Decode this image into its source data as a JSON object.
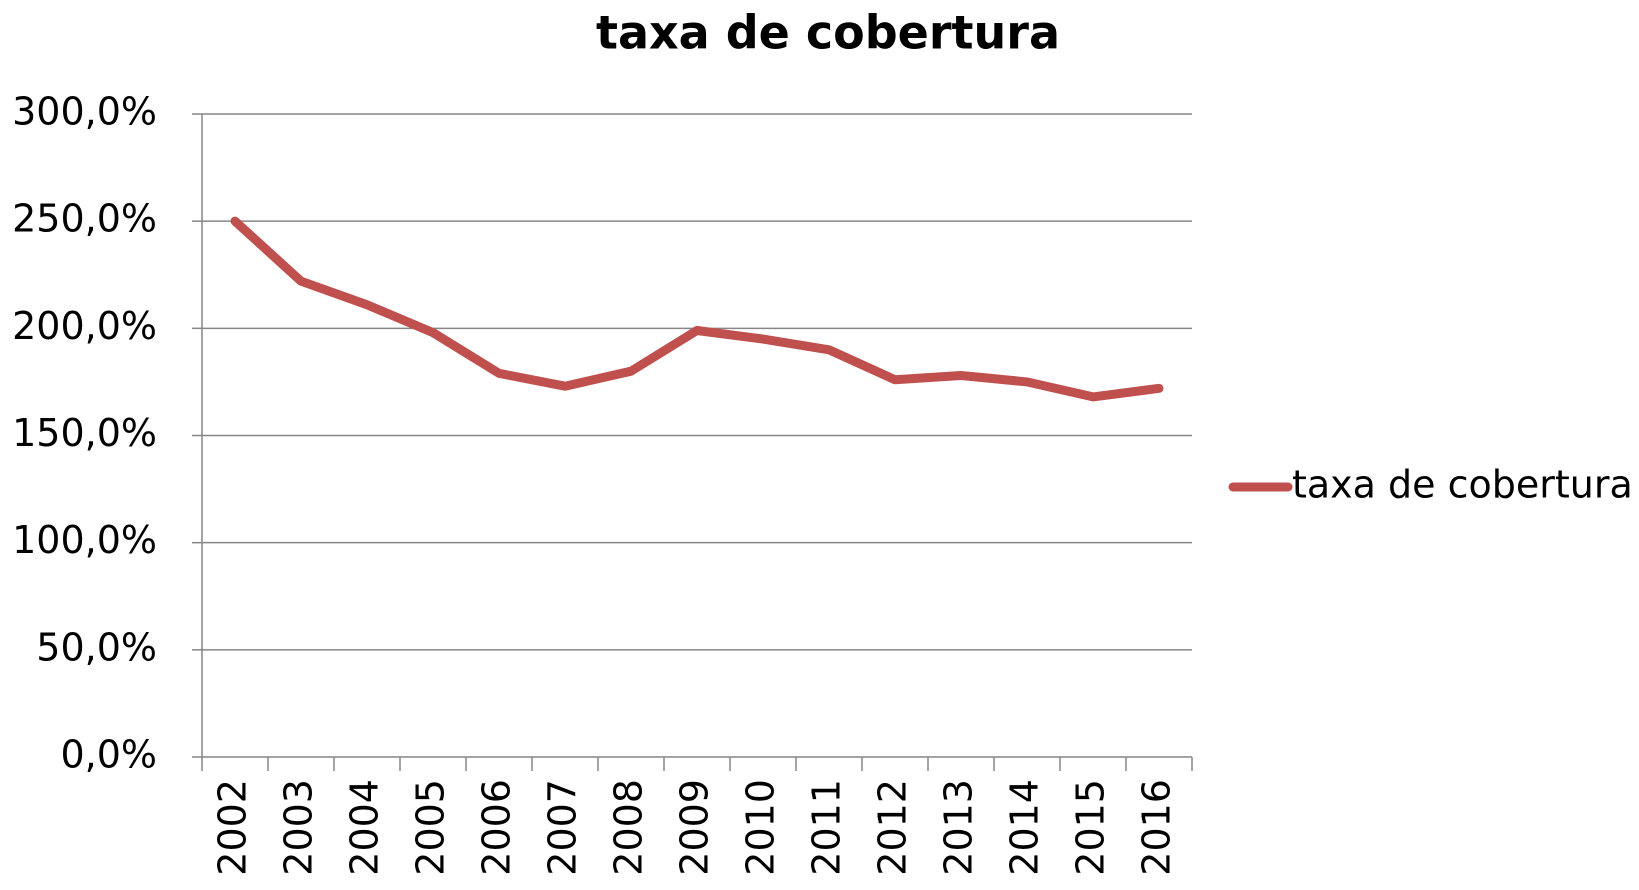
{
  "chart_data": {
    "type": "line",
    "title": "taxa de cobertura",
    "categories": [
      "2002",
      "2003",
      "2004",
      "2005",
      "2006",
      "2007",
      "2008",
      "2009",
      "2010",
      "2011",
      "2012",
      "2013",
      "2014",
      "2015",
      "2016"
    ],
    "series": [
      {
        "name": "taxa de cobertura",
        "color": "#c0504d",
        "values": [
          250,
          222,
          211,
          198,
          179,
          173,
          180,
          199,
          195,
          190,
          176,
          178,
          175,
          168,
          172
        ]
      }
    ],
    "ylim": [
      0,
      300
    ],
    "yticks": [
      {
        "value": 0,
        "label": "0,0%"
      },
      {
        "value": 50,
        "label": "50,0%"
      },
      {
        "value": 100,
        "label": "100,0%"
      },
      {
        "value": 150,
        "label": "150,0%"
      },
      {
        "value": 200,
        "label": "200,0%"
      },
      {
        "value": 250,
        "label": "250,0%"
      },
      {
        "value": 300,
        "label": "300,0%"
      }
    ],
    "grid": true,
    "legend": "right"
  }
}
